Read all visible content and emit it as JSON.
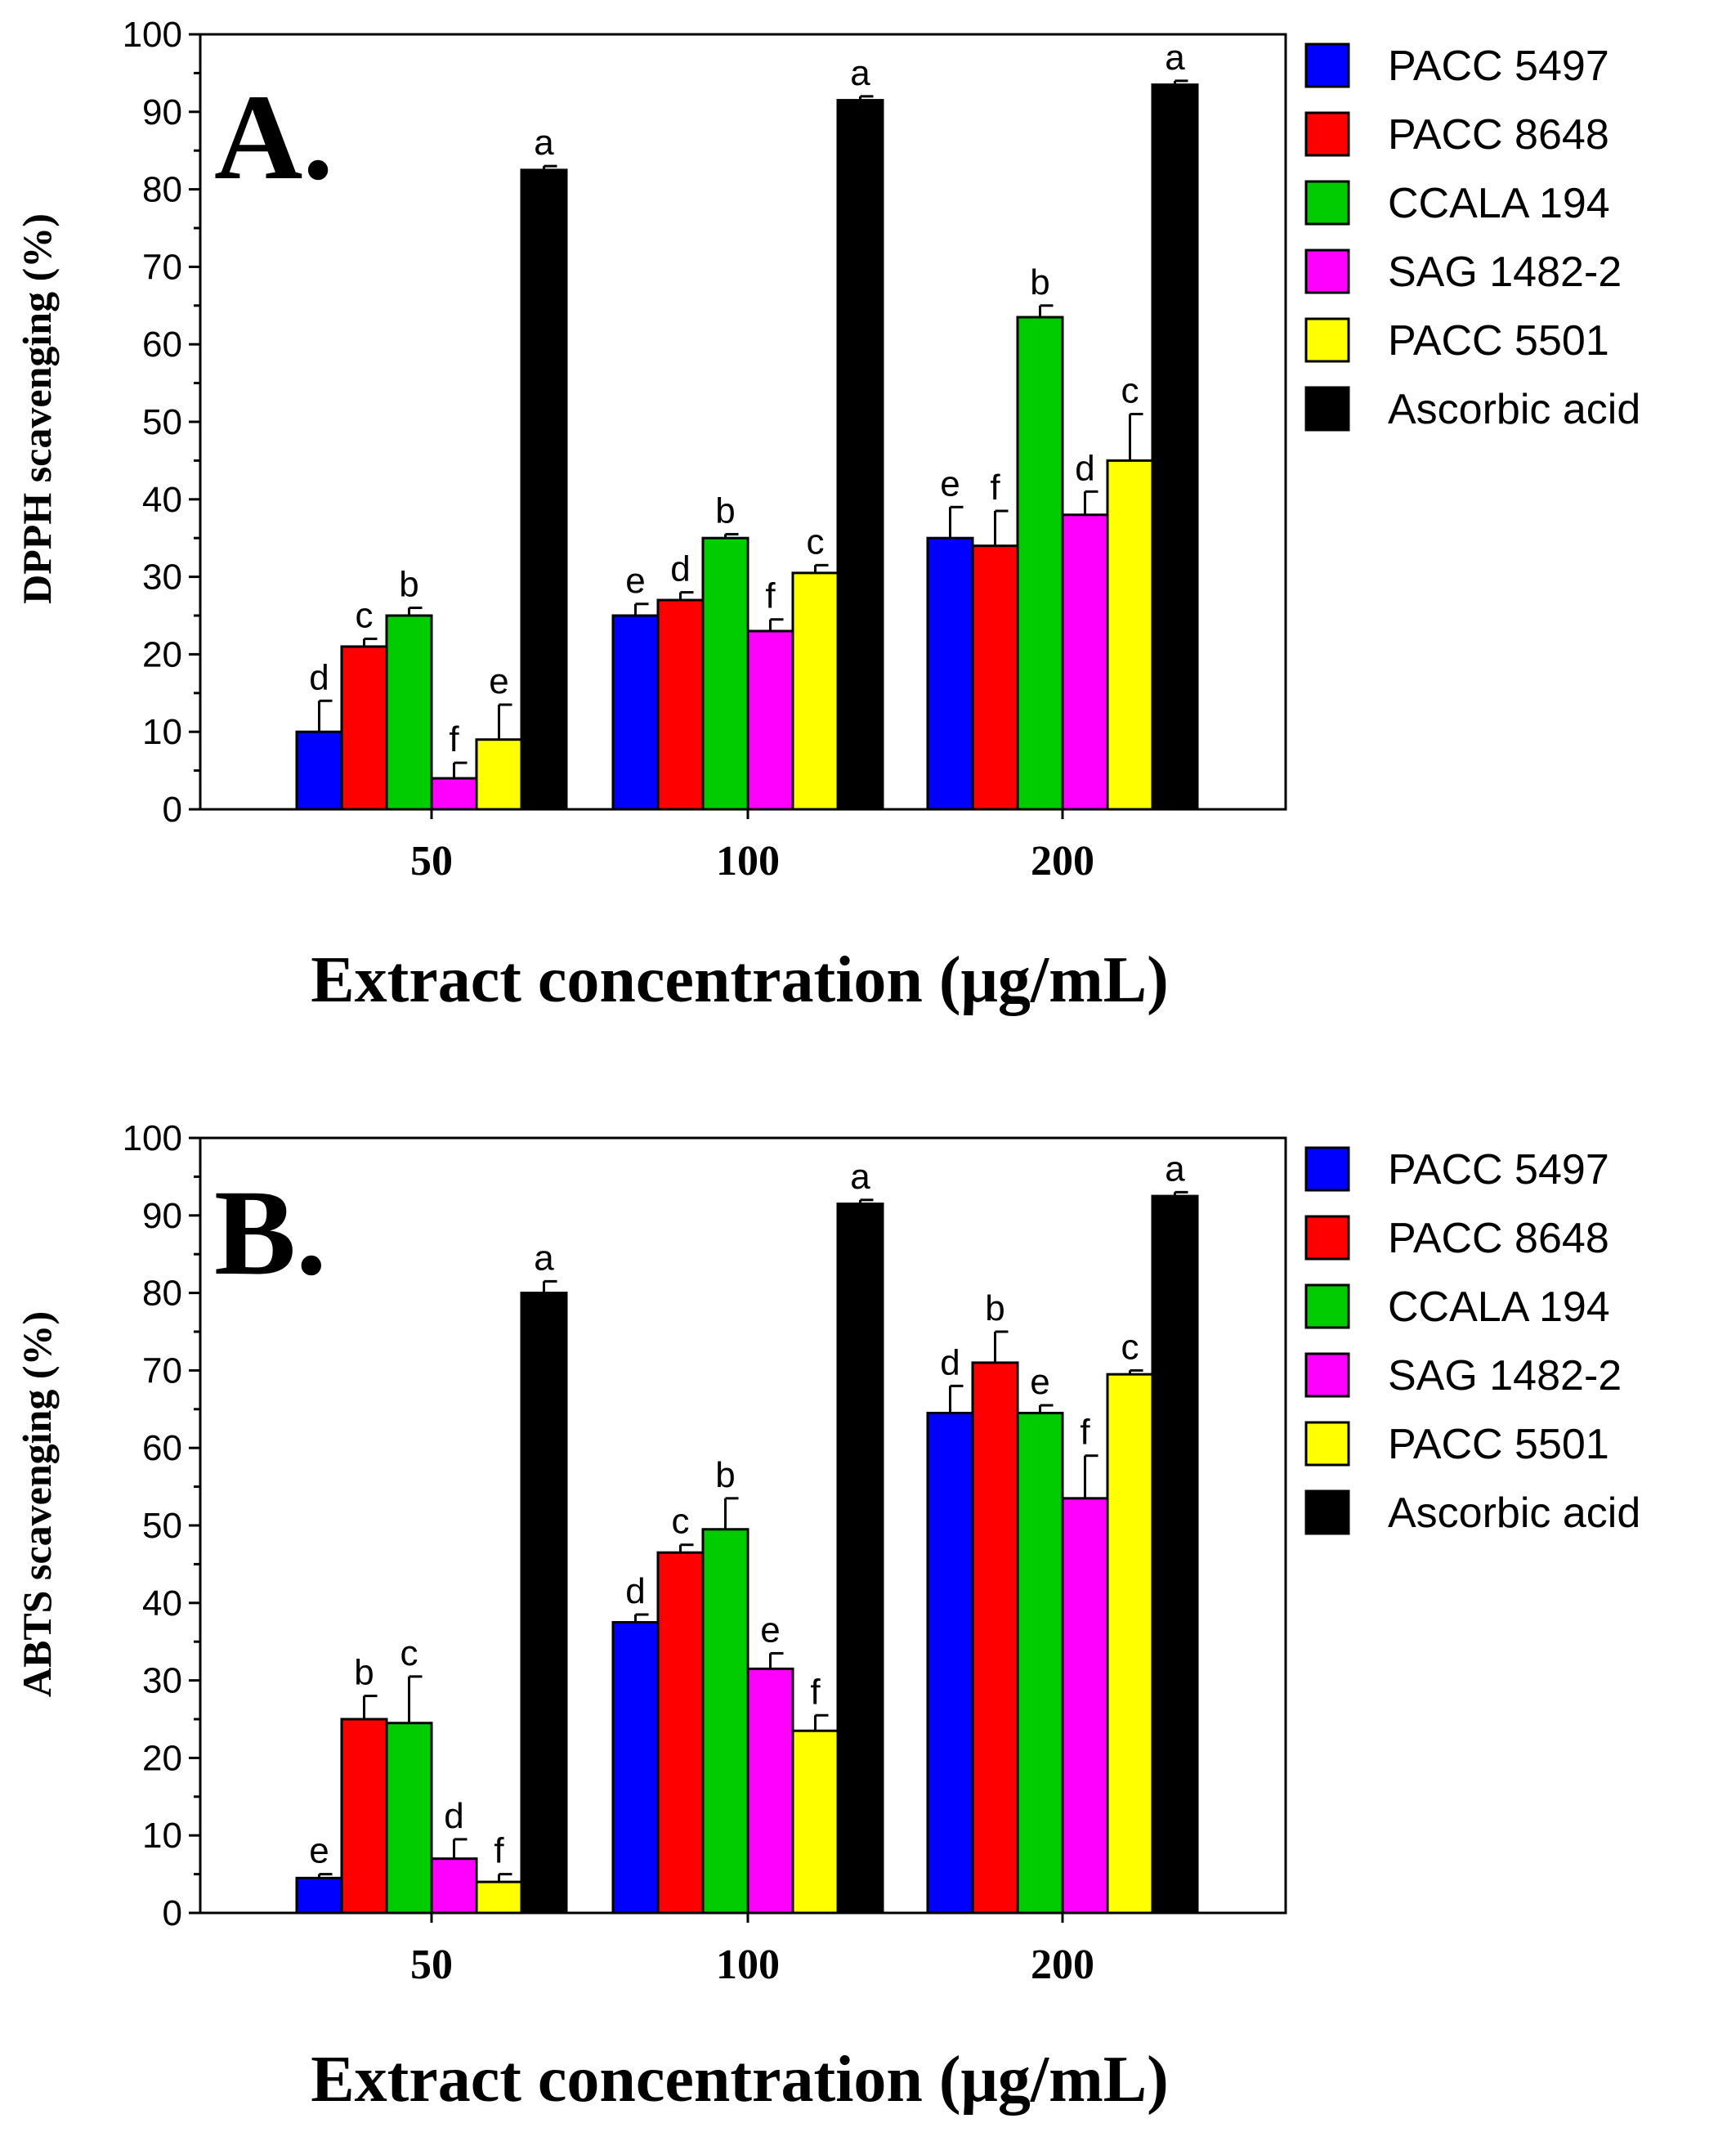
{
  "chart_data": [
    {
      "type": "bar",
      "panel_label": "A.",
      "title": "",
      "xlabel": "Extract concentration (μg/mL)",
      "ylabel": "DPPH scavenging (%)",
      "ylim": [
        0,
        100
      ],
      "yticks": [
        "0",
        "10",
        "20",
        "30",
        "40",
        "50",
        "60",
        "70",
        "80",
        "90",
        "100"
      ],
      "categories": [
        "50",
        "100",
        "200"
      ],
      "legend_position": "right",
      "series": [
        {
          "name": "PACC 5497",
          "color": "#0000ff",
          "values": [
            10,
            25,
            35
          ],
          "errors": [
            4,
            1.5,
            4
          ],
          "letters": [
            "d",
            "e",
            "e"
          ]
        },
        {
          "name": "PACC 8648",
          "color": "#ff0000",
          "values": [
            21,
            27,
            34
          ],
          "errors": [
            1,
            1,
            4.5
          ],
          "letters": [
            "c",
            "d",
            "f"
          ]
        },
        {
          "name": "CCALA 194",
          "color": "#00cc00",
          "values": [
            25,
            35,
            63.5
          ],
          "errors": [
            1,
            0.5,
            1.5
          ],
          "letters": [
            "b",
            "b",
            "b"
          ]
        },
        {
          "name": "SAG 1482-2",
          "color": "#ff00ff",
          "values": [
            4,
            23,
            38
          ],
          "errors": [
            2,
            1.5,
            3
          ],
          "letters": [
            "f",
            "f",
            "d"
          ]
        },
        {
          "name": "PACC 5501",
          "color": "#ffff00",
          "values": [
            9,
            30.5,
            45
          ],
          "errors": [
            4.5,
            1,
            6
          ],
          "letters": [
            "e",
            "c",
            "c"
          ]
        },
        {
          "name": "Ascorbic acid",
          "color": "#000000",
          "values": [
            82.5,
            91.5,
            93.5
          ],
          "errors": [
            0.5,
            0.5,
            0.5
          ],
          "letters": [
            "a",
            "a",
            "a"
          ]
        }
      ]
    },
    {
      "type": "bar",
      "panel_label": "B.",
      "title": "",
      "xlabel": "Extract concentration (μg/mL)",
      "ylabel": "ABTS scavenging (%)",
      "ylim": [
        0,
        100
      ],
      "yticks": [
        "0",
        "10",
        "20",
        "30",
        "40",
        "50",
        "60",
        "70",
        "80",
        "90",
        "100"
      ],
      "categories": [
        "50",
        "100",
        "200"
      ],
      "legend_position": "right",
      "series": [
        {
          "name": "PACC 5497",
          "color": "#0000ff",
          "values": [
            4.5,
            37.5,
            64.5
          ],
          "errors": [
            0.5,
            1,
            3.5
          ],
          "letters": [
            "e",
            "d",
            "d"
          ]
        },
        {
          "name": "PACC 8648",
          "color": "#ff0000",
          "values": [
            25,
            46.5,
            71
          ],
          "errors": [
            3,
            1,
            4
          ],
          "letters": [
            "b",
            "c",
            "b"
          ]
        },
        {
          "name": "CCALA 194",
          "color": "#00cc00",
          "values": [
            24.5,
            49.5,
            64.5
          ],
          "errors": [
            6,
            4,
            1
          ],
          "letters": [
            "c",
            "b",
            "e"
          ]
        },
        {
          "name": "SAG 1482-2",
          "color": "#ff00ff",
          "values": [
            7,
            31.5,
            53.5
          ],
          "errors": [
            2.5,
            2,
            5.5
          ],
          "letters": [
            "d",
            "e",
            "f"
          ]
        },
        {
          "name": "PACC 5501",
          "color": "#ffff00",
          "values": [
            4,
            23.5,
            69.5
          ],
          "errors": [
            1,
            2,
            0.5
          ],
          "letters": [
            "f",
            "f",
            "c"
          ]
        },
        {
          "name": "Ascorbic acid",
          "color": "#000000",
          "values": [
            80,
            91.5,
            92.5
          ],
          "errors": [
            1.5,
            0.5,
            0.5
          ],
          "letters": [
            "a",
            "a",
            "a"
          ]
        }
      ]
    }
  ]
}
